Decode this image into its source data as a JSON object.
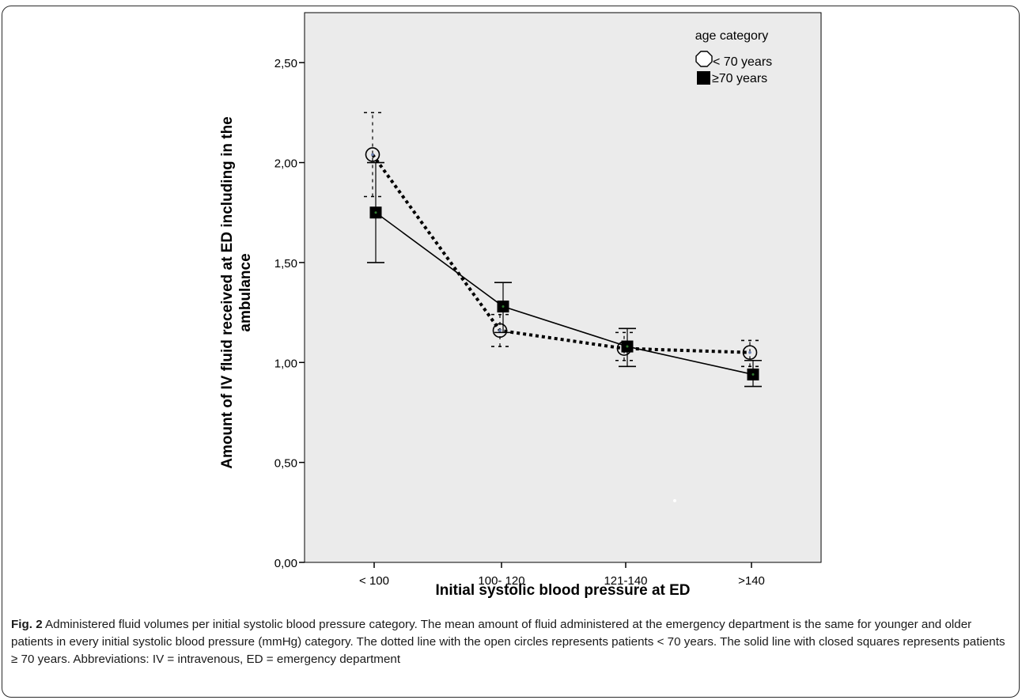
{
  "chart_data": {
    "type": "line",
    "xlabel": "Initial systolic blood pressure at ED",
    "ylabel_lines": [
      "Amount of IV fluid received at ED including in the",
      "ambulance"
    ],
    "categories": [
      "< 100",
      "100- 120",
      "121-140",
      ">140"
    ],
    "ylim": [
      0,
      2.75
    ],
    "yticks": [
      "0,00",
      "0,50",
      "1,00",
      "1,50",
      "2,00",
      "2,50"
    ],
    "ytick_values": [
      0,
      0.5,
      1.0,
      1.5,
      2.0,
      2.5
    ],
    "legend": {
      "title": "age category",
      "placement": "top-right",
      "entries": [
        "< 70 years",
        "≥70 years"
      ]
    },
    "series": [
      {
        "name": "< 70 years",
        "style": "dotted",
        "marker": "open-circle",
        "values": [
          2.04,
          1.16,
          1.07,
          1.05
        ],
        "ci_low": [
          1.83,
          1.08,
          1.01,
          0.98
        ],
        "ci_high": [
          2.25,
          1.24,
          1.15,
          1.11
        ]
      },
      {
        "name": "≥70 years",
        "style": "solid",
        "marker": "filled-square",
        "values": [
          1.75,
          1.28,
          1.08,
          0.94
        ],
        "ci_low": [
          1.5,
          1.15,
          0.98,
          0.88
        ],
        "ci_high": [
          2.0,
          1.4,
          1.17,
          1.01
        ]
      }
    ],
    "colors": {
      "plot_background": "#ebebeb",
      "line": "#000000"
    }
  },
  "caption": {
    "label": "Fig. 2",
    "text": " Administered fluid volumes per initial systolic blood pressure category. The mean amount of fluid administered at the emergency department is the same for younger and older patients in every initial systolic blood pressure (mmHg) category. The dotted line with the open circles represents patients < 70 years. The solid line with closed squares represents patients ≥ 70 years. Abbreviations: IV = intravenous, ED = emergency department"
  }
}
